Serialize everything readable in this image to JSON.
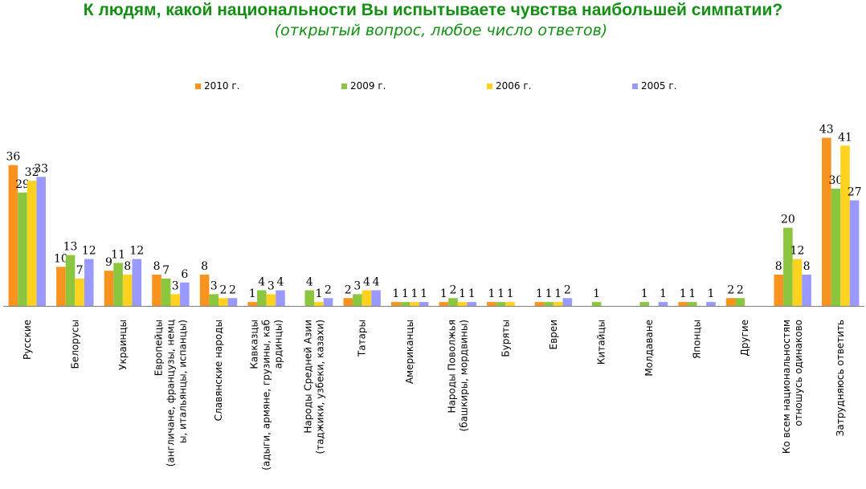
{
  "title": "К людям,  какой национальности Вы испытываете чувства наибольшей симпатии?",
  "subtitle": "(открытый вопрос, любое число ответов)",
  "chart_data": {
    "type": "bar",
    "title": "К людям,  какой национальности Вы испытываете чувства наибольшей симпатии?",
    "subtitle": "(открытый вопрос, любое число ответов)",
    "xlabel": "",
    "ylabel": "",
    "ylim": [
      0,
      45
    ],
    "grid": false,
    "legend_position": "top",
    "categories": [
      [
        "Русские"
      ],
      [
        "Белорусы"
      ],
      [
        "Украинцы"
      ],
      [
        "Европейцы",
        "(англичане, французы, немц",
        "ы, итальянцы, испанцы)"
      ],
      [
        "Славянские народы"
      ],
      [
        "Кавказцы",
        "(адыги, армяне, грузины, каб",
        "ардинцы)"
      ],
      [
        "Народы Средней Азии",
        "(таджики, узбеки, казахи)"
      ],
      [
        "Татары"
      ],
      [
        "Американцы"
      ],
      [
        "Народы Поволжья",
        "(башкиры, мордвины)"
      ],
      [
        "Буряты"
      ],
      [
        "Евреи"
      ],
      [
        "Китайцы"
      ],
      [
        "Молдаване"
      ],
      [
        "Японцы"
      ],
      [
        "Другие"
      ],
      [
        "Ко всем национальностям",
        "отношусь одинаково"
      ],
      [
        "Затрудняюсь ответить"
      ]
    ],
    "series": [
      {
        "name": "2010 г.",
        "color": "#f7931e",
        "values": [
          36,
          10,
          9,
          8,
          8,
          1,
          null,
          2,
          1,
          1,
          1,
          1,
          null,
          null,
          1,
          2,
          8,
          43
        ],
        "labels": [
          "36",
          "10",
          "9",
          "8",
          "8",
          "1",
          "",
          "2",
          "1",
          "1",
          "1",
          "1",
          "",
          "",
          "1",
          "2",
          "8",
          "43"
        ]
      },
      {
        "name": "2009 г.",
        "color": "#8cc63f",
        "values": [
          29,
          13,
          11,
          7,
          3,
          4,
          4,
          3,
          1,
          2,
          1,
          1,
          1,
          1,
          1,
          2,
          20,
          30
        ],
        "labels": [
          "29",
          "13",
          "11",
          "7",
          "3",
          "4",
          "4",
          "3",
          "1",
          "2",
          "1",
          "1",
          "1",
          "1",
          "1",
          "2",
          "20",
          "30"
        ]
      },
      {
        "name": "2006 г.",
        "color": "#ffd21f",
        "values": [
          32,
          7,
          8,
          3,
          2,
          3,
          1,
          4,
          1,
          1,
          1,
          1,
          null,
          null,
          null,
          null,
          12,
          41
        ],
        "labels": [
          "32",
          "7",
          "8",
          "3",
          "2",
          "3",
          "1",
          "4",
          "1",
          "1",
          "1",
          "1",
          "",
          "",
          "",
          "",
          "12",
          "41"
        ]
      },
      {
        "name": "2005 г.",
        "color": "#9999ff",
        "values": [
          33,
          12,
          12,
          6,
          2,
          4,
          2,
          4,
          1,
          1,
          null,
          2,
          null,
          1,
          1,
          null,
          8,
          27
        ],
        "labels": [
          "33",
          "12",
          "12",
          "6",
          "2",
          "4",
          "2",
          "4",
          "1",
          "1",
          "",
          "2",
          "",
          "1",
          "1",
          "",
          "8",
          "27"
        ]
      }
    ]
  }
}
